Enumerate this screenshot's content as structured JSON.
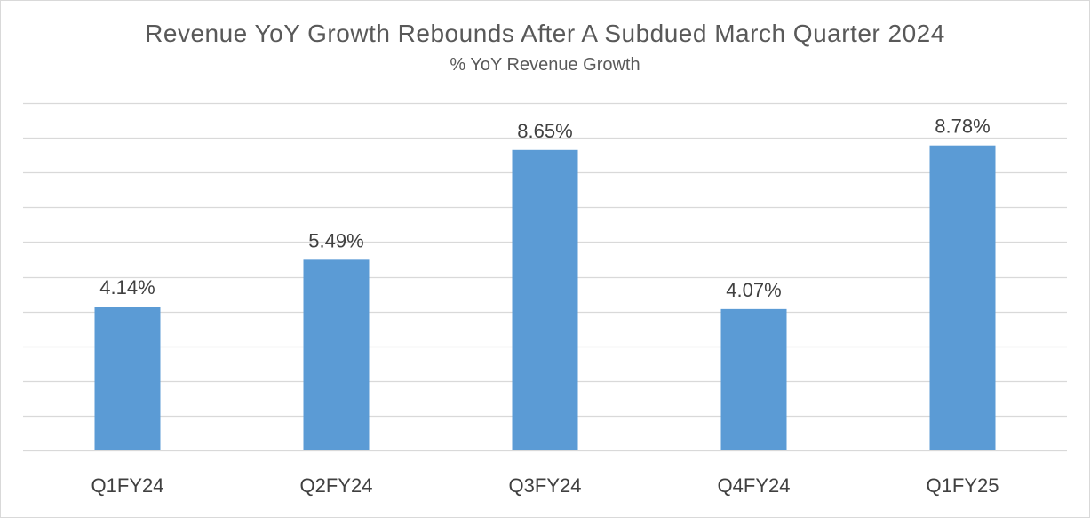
{
  "chart_data": {
    "type": "bar",
    "title": "Revenue YoY Growth Rebounds After A Subdued March Quarter 2024",
    "subtitle": "% YoY Revenue Growth",
    "categories": [
      "Q1FY24",
      "Q2FY24",
      "Q3FY24",
      "Q4FY24",
      "Q1FY25"
    ],
    "values": [
      4.14,
      5.49,
      8.65,
      4.07,
      8.78
    ],
    "data_labels": [
      "4.14%",
      "5.49%",
      "8.65%",
      "4.07%",
      "8.78%"
    ],
    "xlabel": "",
    "ylabel": "",
    "ylim": [
      0,
      10
    ],
    "y_gridline_step": 1,
    "grid": true,
    "legend": "none",
    "bar_color": "#5b9bd5",
    "grid_color": "#d9d9d9",
    "text_color": "#595959",
    "label_color": "#404040"
  }
}
